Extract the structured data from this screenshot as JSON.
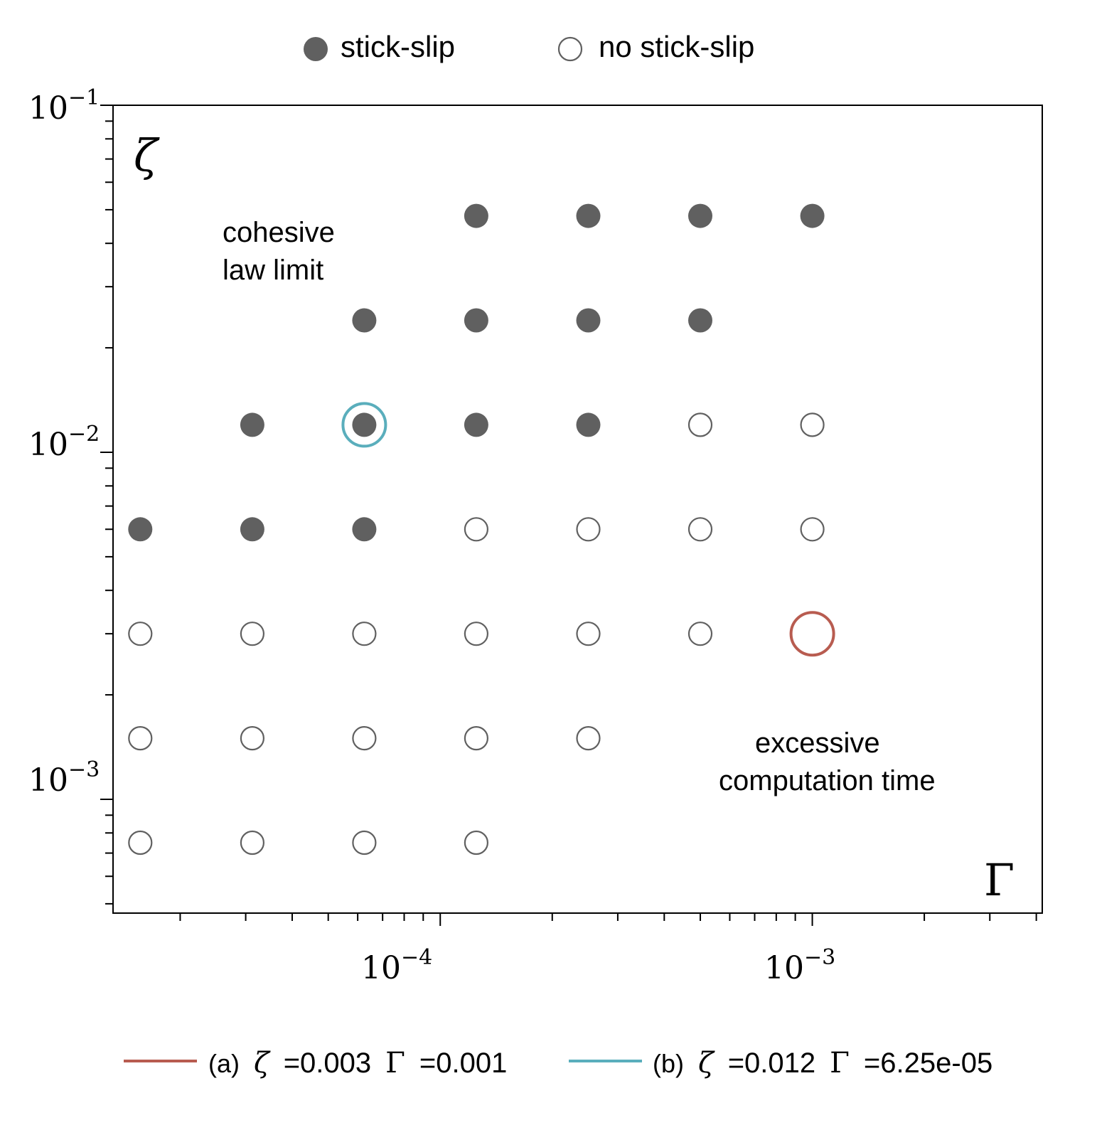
{
  "chart_data": {
    "type": "scatter",
    "xlabel": "Γ",
    "ylabel": "ζ",
    "x_scale": "log",
    "y_scale": "log",
    "xlim": [
      1.32e-05,
      0.00415
    ],
    "ylim": [
      0.00047,
      0.1
    ],
    "grid": false,
    "x_ticks": [
      {
        "value": 0.0001,
        "mant": "10",
        "exp": "−4"
      },
      {
        "value": 0.001,
        "mant": "10",
        "exp": "−3"
      }
    ],
    "y_ticks": [
      {
        "value": 0.1,
        "mant": "10",
        "exp": "−1"
      },
      {
        "value": 0.01,
        "mant": "10",
        "exp": "−2"
      },
      {
        "value": 0.001,
        "mant": "10",
        "exp": "−3"
      }
    ],
    "legend_top": [
      {
        "label": "stick-slip",
        "marker": "filled"
      },
      {
        "label": "no stick-slip",
        "marker": "open"
      }
    ],
    "series": [
      {
        "name": "stick-slip",
        "marker": "filled",
        "color": "#606060",
        "points": [
          {
            "x": 0.000125,
            "y": 0.048
          },
          {
            "x": 0.00025,
            "y": 0.048
          },
          {
            "x": 0.0005,
            "y": 0.048
          },
          {
            "x": 0.001,
            "y": 0.048
          },
          {
            "x": 6.25e-05,
            "y": 0.024
          },
          {
            "x": 0.000125,
            "y": 0.024
          },
          {
            "x": 0.00025,
            "y": 0.024
          },
          {
            "x": 0.0005,
            "y": 0.024
          },
          {
            "x": 3.125e-05,
            "y": 0.012
          },
          {
            "x": 6.25e-05,
            "y": 0.012
          },
          {
            "x": 0.000125,
            "y": 0.012
          },
          {
            "x": 0.00025,
            "y": 0.012
          },
          {
            "x": 1.5625e-05,
            "y": 0.006
          },
          {
            "x": 3.125e-05,
            "y": 0.006
          },
          {
            "x": 6.25e-05,
            "y": 0.006
          }
        ]
      },
      {
        "name": "no stick-slip",
        "marker": "open",
        "color": "#606060",
        "points": [
          {
            "x": 0.0005,
            "y": 0.012
          },
          {
            "x": 0.001,
            "y": 0.012
          },
          {
            "x": 0.000125,
            "y": 0.006
          },
          {
            "x": 0.00025,
            "y": 0.006
          },
          {
            "x": 0.0005,
            "y": 0.006
          },
          {
            "x": 0.001,
            "y": 0.006
          },
          {
            "x": 1.5625e-05,
            "y": 0.003
          },
          {
            "x": 3.125e-05,
            "y": 0.003
          },
          {
            "x": 6.25e-05,
            "y": 0.003
          },
          {
            "x": 0.000125,
            "y": 0.003
          },
          {
            "x": 0.00025,
            "y": 0.003
          },
          {
            "x": 0.0005,
            "y": 0.003
          },
          {
            "x": 1.5625e-05,
            "y": 0.0015
          },
          {
            "x": 3.125e-05,
            "y": 0.0015
          },
          {
            "x": 6.25e-05,
            "y": 0.0015
          },
          {
            "x": 0.000125,
            "y": 0.0015
          },
          {
            "x": 0.00025,
            "y": 0.0015
          },
          {
            "x": 1.5625e-05,
            "y": 0.00075
          },
          {
            "x": 3.125e-05,
            "y": 0.00075
          },
          {
            "x": 6.25e-05,
            "y": 0.00075
          },
          {
            "x": 0.000125,
            "y": 0.00075
          }
        ]
      }
    ],
    "highlights": [
      {
        "id": "a",
        "x": 0.001,
        "y": 0.003,
        "color": "#b85c50",
        "prefix": "(a)",
        "zeta_sym": "ζ",
        "zeta_val": "=0.003",
        "gamma_sym": "Γ",
        "gamma_val": "=0.001"
      },
      {
        "id": "b",
        "x": 6.25e-05,
        "y": 0.012,
        "color": "#5aaebc",
        "prefix": "(b)",
        "zeta_sym": "ζ",
        "zeta_val": "=0.012",
        "gamma_sym": "Γ",
        "gamma_val": "=6.25e-05"
      }
    ],
    "annotations": [
      {
        "id": "cohesive",
        "lines": [
          "cohesive",
          "law limit"
        ]
      },
      {
        "id": "excessive",
        "lines": [
          "excessive",
          "computation time"
        ]
      }
    ]
  }
}
